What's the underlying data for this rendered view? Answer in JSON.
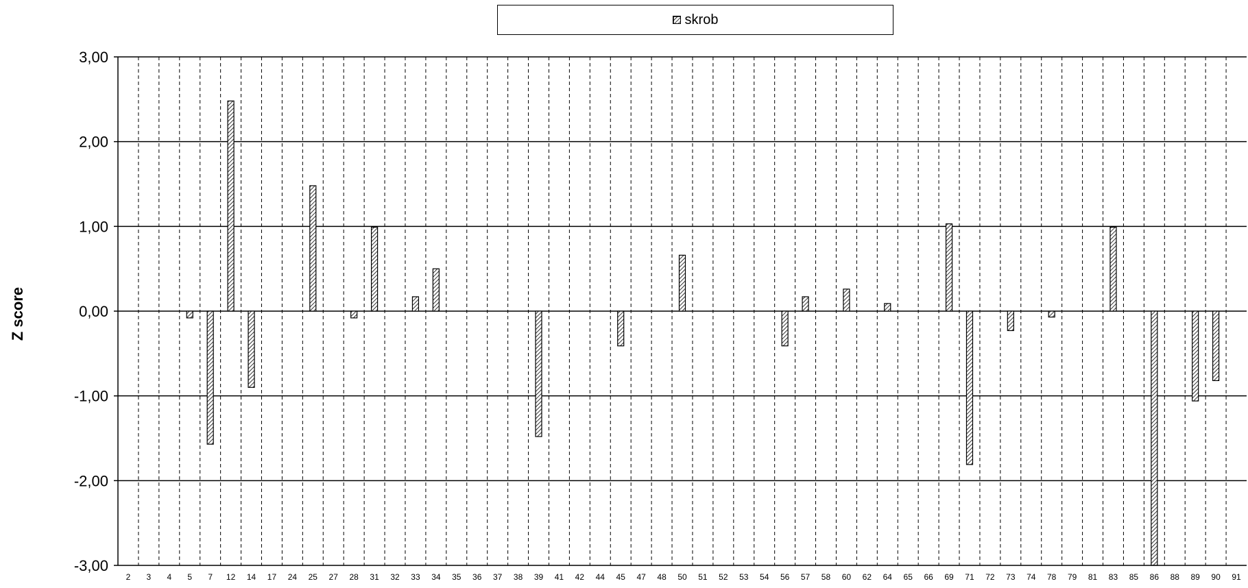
{
  "chart_data": {
    "type": "bar",
    "ylabel": "Z score",
    "xlabel": "",
    "ylim": [
      -3,
      3
    ],
    "yticks": [
      "3,00",
      "2,00",
      "1,00",
      "0,00",
      "-1,00",
      "-2,00",
      "-3,00"
    ],
    "grid": "horizontal solid, vertical dashed",
    "legend_position": "top-center",
    "categories": [
      "2",
      "3",
      "4",
      "5",
      "7",
      "12",
      "14",
      "17",
      "24",
      "25",
      "27",
      "28",
      "31",
      "32",
      "33",
      "34",
      "35",
      "36",
      "37",
      "38",
      "39",
      "41",
      "42",
      "44",
      "45",
      "47",
      "48",
      "50",
      "51",
      "52",
      "53",
      "54",
      "56",
      "57",
      "58",
      "60",
      "62",
      "64",
      "65",
      "66",
      "69",
      "71",
      "72",
      "73",
      "74",
      "78",
      "79",
      "81",
      "83",
      "85",
      "86",
      "88",
      "89",
      "90",
      "91"
    ],
    "series": [
      {
        "name": "skrob",
        "pattern": "diagonal-hatch",
        "values": [
          0,
          0,
          0,
          -0.08,
          -1.57,
          2.48,
          -0.9,
          0,
          0,
          1.48,
          0,
          -0.08,
          0.99,
          0,
          0.17,
          0.5,
          0,
          0,
          0,
          0,
          -1.48,
          0,
          0,
          0,
          -0.41,
          0,
          0,
          0.66,
          0,
          0,
          0,
          0,
          -0.41,
          0.17,
          0,
          0.26,
          0,
          0.09,
          0,
          0,
          1.03,
          -1.81,
          0,
          -0.23,
          0,
          -0.07,
          0,
          0,
          0.99,
          0,
          -3.0,
          0,
          -1.06,
          -0.82,
          0
        ]
      }
    ],
    "colors": {
      "bar_fill": "#ffffff",
      "bar_stroke": "#000000",
      "grid": "#000000"
    }
  }
}
